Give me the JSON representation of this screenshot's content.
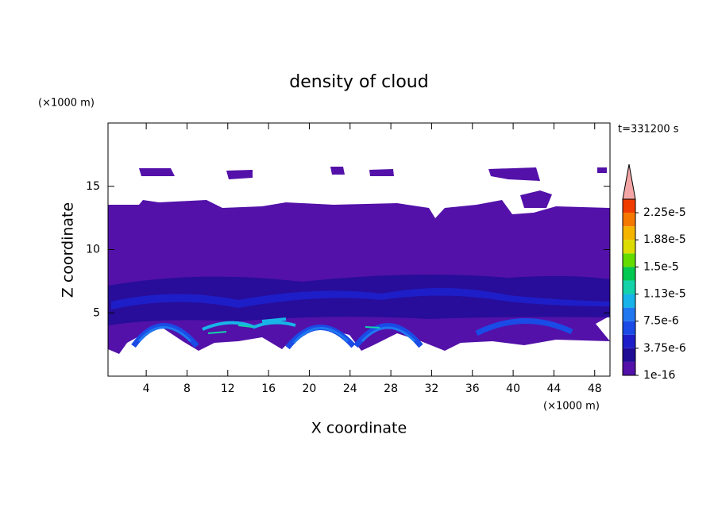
{
  "chart_data": {
    "type": "contour",
    "title": "density of cloud",
    "xlabel": "X coordinate",
    "ylabel": "Z coordinate",
    "x_unit": "(×1000 m)",
    "y_unit": "(×1000 m)",
    "annotation": "t=331200 s",
    "xlim": [
      0.25,
      49.5
    ],
    "ylim": [
      0,
      20
    ],
    "xticks": [
      4,
      8,
      12,
      16,
      20,
      24,
      28,
      32,
      36,
      40,
      44,
      48
    ],
    "yticks": [
      5,
      10,
      15
    ],
    "colorbar": {
      "levels": [
        1e-16,
        1.875e-06,
        3.75e-06,
        5.625e-06,
        7.5e-06,
        9.375e-06,
        1.125e-05,
        1.3125e-05,
        1.5e-05,
        1.6875e-05,
        1.875e-05,
        2.0625e-05,
        2.25e-05,
        2.4375e-05
      ],
      "colors": [
        "#5311a9",
        "#200d96",
        "#1e1ec8",
        "#1a4be6",
        "#1f78f0",
        "#18b4e8",
        "#14d2aa",
        "#00c850",
        "#64dc00",
        "#dcdc00",
        "#f5b400",
        "#f57800",
        "#f03c00"
      ],
      "extend_color": "#f4a6a6",
      "ticks": [
        {
          "value": 1e-16,
          "label": "1e-16"
        },
        {
          "value": 3.75e-06,
          "label": "3.75e-6"
        },
        {
          "value": 7.5e-06,
          "label": "7.5e-6"
        },
        {
          "value": 1.125e-05,
          "label": "1.13e-5"
        },
        {
          "value": 1.5e-05,
          "label": "1.5e-5"
        },
        {
          "value": 1.875e-05,
          "label": "1.88e-5"
        },
        {
          "value": 2.25e-05,
          "label": "2.25e-5"
        }
      ]
    }
  }
}
